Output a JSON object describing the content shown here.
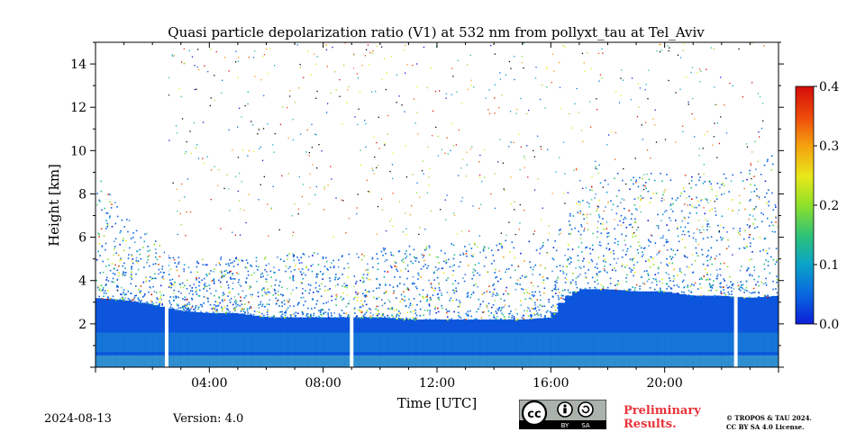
{
  "chart_data": {
    "type": "heatmap",
    "title": "Quasi particle depolarization ratio (V1) at 532 nm from pollyxt_tau at Tel_Aviv",
    "xlabel": "Time [UTC]",
    "ylabel": "Height [km]",
    "xlim": [
      0,
      24
    ],
    "ylim": [
      0,
      15
    ],
    "x_ticks": [
      {
        "value": 4,
        "label": "04:00"
      },
      {
        "value": 8,
        "label": "08:00"
      },
      {
        "value": 12,
        "label": "12:00"
      },
      {
        "value": 16,
        "label": "16:00"
      },
      {
        "value": 20,
        "label": "20:00"
      }
    ],
    "y_ticks": [
      {
        "value": 2,
        "label": "2"
      },
      {
        "value": 4,
        "label": "4"
      },
      {
        "value": 6,
        "label": "6"
      },
      {
        "value": 8,
        "label": "8"
      },
      {
        "value": 10,
        "label": "10"
      },
      {
        "value": 12,
        "label": "12"
      },
      {
        "value": 14,
        "label": "14"
      }
    ],
    "colorbar": {
      "min": 0.0,
      "max": 0.4,
      "ticks": [
        {
          "value": 0.0,
          "label": "0.0"
        },
        {
          "value": 0.1,
          "label": "0.1"
        },
        {
          "value": 0.2,
          "label": "0.2"
        },
        {
          "value": 0.3,
          "label": "0.3"
        },
        {
          "value": 0.4,
          "label": "0.4"
        }
      ],
      "colormap": [
        "#0b1fd6",
        "#0a64e0",
        "#0aa3c8",
        "#2ec27a",
        "#8ee02a",
        "#e8e81a",
        "#f5a10f",
        "#ee4c0a",
        "#d40c0a"
      ]
    },
    "boundary_layer_top_km": [
      [
        0,
        3.2
      ],
      [
        1,
        3.1
      ],
      [
        2,
        2.9
      ],
      [
        3,
        2.6
      ],
      [
        4,
        2.5
      ],
      [
        5,
        2.5
      ],
      [
        6,
        2.3
      ],
      [
        7,
        2.3
      ],
      [
        8,
        2.3
      ],
      [
        9,
        2.3
      ],
      [
        10,
        2.3
      ],
      [
        11,
        2.2
      ],
      [
        12,
        2.2
      ],
      [
        13,
        2.2
      ],
      [
        14,
        2.2
      ],
      [
        15,
        2.2
      ],
      [
        16,
        2.3
      ],
      [
        16.5,
        3.2
      ],
      [
        17,
        3.6
      ],
      [
        18,
        3.6
      ],
      [
        19,
        3.5
      ],
      [
        20,
        3.5
      ],
      [
        21,
        3.3
      ],
      [
        22,
        3.3
      ],
      [
        23,
        3.2
      ],
      [
        24,
        3.3
      ]
    ],
    "scatter_top_km": [
      [
        0,
        9
      ],
      [
        1,
        7
      ],
      [
        2,
        6
      ],
      [
        3,
        5
      ],
      [
        16,
        6
      ],
      [
        17,
        8
      ],
      [
        18,
        9
      ],
      [
        20,
        9
      ],
      [
        22,
        9
      ],
      [
        24,
        10
      ]
    ],
    "no_data_times_h": [
      2.5,
      9.0,
      22.5
    ],
    "units": "depolarization ratio"
  },
  "footer": {
    "date": "2024-08-13",
    "version": "Version: 4.0",
    "license_badge": {
      "icon": "cc-by-sa-icon",
      "left": "BY",
      "right": "SA"
    },
    "preliminary": [
      "Preliminary",
      "Results."
    ],
    "copyright": [
      "© TROPOS & TAU 2024.",
      "CC BY SA 4.0 License."
    ]
  }
}
